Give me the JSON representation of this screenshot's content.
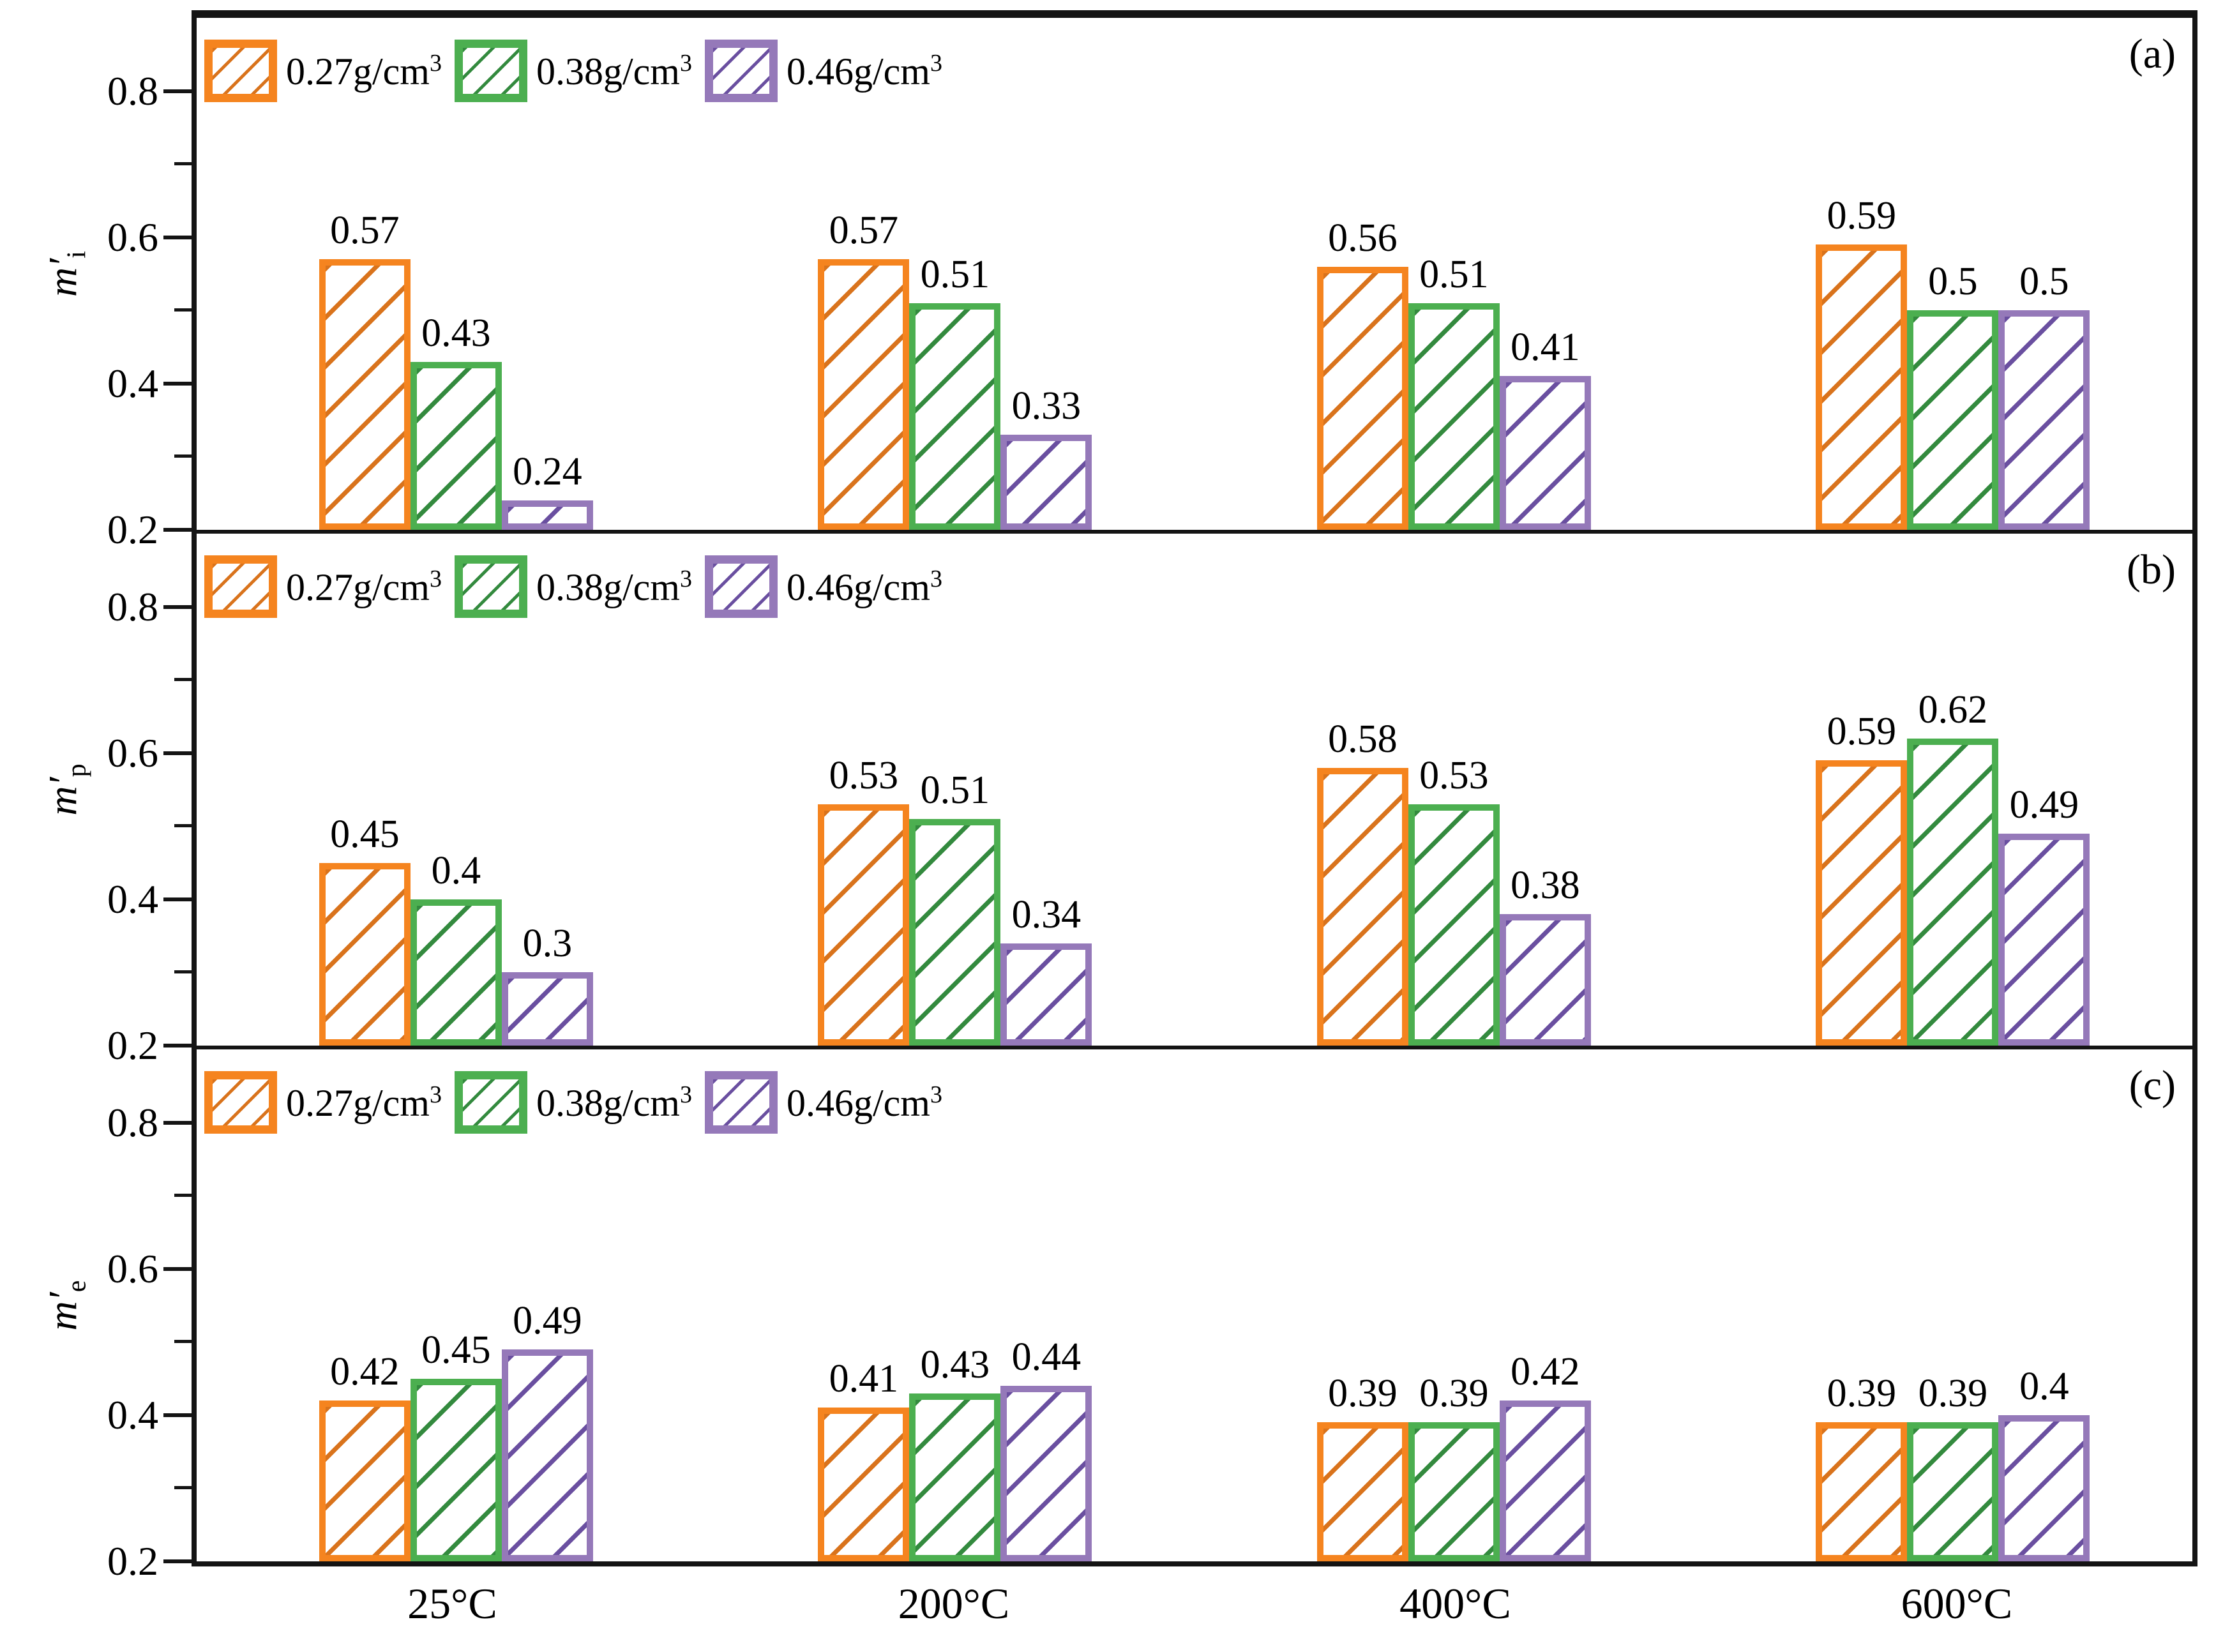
{
  "x_axis": {
    "categories": [
      "25°C",
      "200°C",
      "400°C",
      "600°C"
    ]
  },
  "y_axis": {
    "range": [
      0.2,
      0.9
    ],
    "major_ticks": [
      0.8,
      0.6,
      0.4,
      0.2
    ],
    "tick_labels": [
      "0.8",
      "0.6",
      "0.4",
      "0.2"
    ],
    "minor_ticks": [
      0.7,
      0.5,
      0.3
    ]
  },
  "legend_items": [
    {
      "label": "0.27g/cm",
      "sup": "3",
      "edge_color": "#F5841F",
      "hatch_color": "#D9731C"
    },
    {
      "label": "0.38g/cm",
      "sup": "3",
      "edge_color": "#4CAF50",
      "hatch_color": "#338A3E"
    },
    {
      "label": "0.46g/cm",
      "sup": "3",
      "edge_color": "#9579B9",
      "hatch_color": "#6A4FA0"
    }
  ],
  "panels": [
    {
      "letter": "(a)",
      "ylabel_base": "m",
      "ylabel_prime": "′",
      "ylabel_sub": "i"
    },
    {
      "letter": "(b)",
      "ylabel_base": "m",
      "ylabel_prime": "′",
      "ylabel_sub": "p"
    },
    {
      "letter": "(c)",
      "ylabel_base": "m",
      "ylabel_prime": "′",
      "ylabel_sub": "e"
    }
  ],
  "chart_data": [
    {
      "type": "bar",
      "panel": "a",
      "panel_letter": "(a)",
      "ylabel": "m′_i",
      "categories": [
        "25°C",
        "200°C",
        "400°C",
        "600°C"
      ],
      "series": [
        {
          "name": "0.27g/cm³",
          "values": [
            0.57,
            0.57,
            0.56,
            0.59
          ]
        },
        {
          "name": "0.38g/cm³",
          "values": [
            0.43,
            0.51,
            0.51,
            0.5
          ]
        },
        {
          "name": "0.46g/cm³",
          "values": [
            0.24,
            0.33,
            0.41,
            0.5
          ]
        }
      ],
      "ylim": [
        0.2,
        0.9
      ],
      "yticks": [
        0.2,
        0.4,
        0.6,
        0.8
      ],
      "grid": false,
      "bar_labels": true,
      "legend_position": "top-left"
    },
    {
      "type": "bar",
      "panel": "b",
      "panel_letter": "(b)",
      "ylabel": "m′_p",
      "categories": [
        "25°C",
        "200°C",
        "400°C",
        "600°C"
      ],
      "series": [
        {
          "name": "0.27g/cm³",
          "values": [
            0.45,
            0.53,
            0.58,
            0.59
          ]
        },
        {
          "name": "0.38g/cm³",
          "values": [
            0.4,
            0.51,
            0.53,
            0.62
          ]
        },
        {
          "name": "0.46g/cm³",
          "values": [
            0.3,
            0.34,
            0.38,
            0.49
          ]
        }
      ],
      "ylim": [
        0.2,
        0.9
      ],
      "yticks": [
        0.2,
        0.4,
        0.6,
        0.8
      ],
      "grid": false,
      "bar_labels": true,
      "legend_position": "top-left"
    },
    {
      "type": "bar",
      "panel": "c",
      "panel_letter": "(c)",
      "ylabel": "m′_e",
      "categories": [
        "25°C",
        "200°C",
        "400°C",
        "600°C"
      ],
      "series": [
        {
          "name": "0.27g/cm³",
          "values": [
            0.42,
            0.41,
            0.39,
            0.39
          ]
        },
        {
          "name": "0.38g/cm³",
          "values": [
            0.45,
            0.43,
            0.39,
            0.39
          ]
        },
        {
          "name": "0.46g/cm³",
          "values": [
            0.49,
            0.44,
            0.42,
            0.4
          ]
        }
      ],
      "ylim": [
        0.2,
        0.9
      ],
      "yticks": [
        0.2,
        0.4,
        0.6,
        0.8
      ],
      "grid": false,
      "bar_labels": true,
      "legend_position": "top-left"
    }
  ]
}
